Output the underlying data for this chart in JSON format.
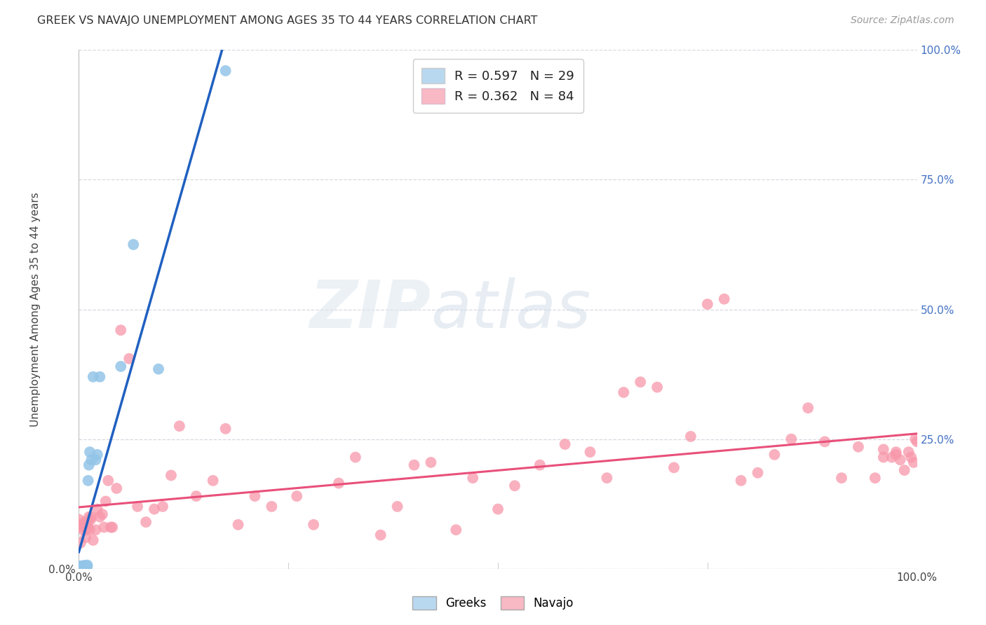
{
  "title": "GREEK VS NAVAJO UNEMPLOYMENT AMONG AGES 35 TO 44 YEARS CORRELATION CHART",
  "source": "Source: ZipAtlas.com",
  "ylabel": "Unemployment Among Ages 35 to 44 years",
  "xlim": [
    0,
    1.0
  ],
  "ylim": [
    0,
    1.0
  ],
  "greek_R": 0.597,
  "greek_N": 29,
  "navajo_R": 0.362,
  "navajo_N": 84,
  "greek_color": "#93c5e8",
  "navajo_color": "#f897aa",
  "greek_color_legend": "#b8d8f0",
  "navajo_color_legend": "#f8b8c4",
  "trend_line_color_greek": "#2060c0",
  "trend_line_color_navajo": "#e8507a",
  "trend_dashed_color": "#c0c8d8",
  "background_color": "#ffffff",
  "grid_color": "#d8d8e0",
  "right_tick_color": "#4472c4",
  "greek_x": [
    0.001,
    0.002,
    0.002,
    0.003,
    0.003,
    0.004,
    0.004,
    0.005,
    0.005,
    0.006,
    0.006,
    0.007,
    0.007,
    0.008,
    0.009,
    0.01,
    0.01,
    0.011,
    0.012,
    0.013,
    0.015,
    0.017,
    0.02,
    0.022,
    0.025,
    0.05,
    0.065,
    0.095,
    0.175
  ],
  "greek_y": [
    0.005,
    0.002,
    0.004,
    0.003,
    0.005,
    0.002,
    0.005,
    0.004,
    0.006,
    0.003,
    0.005,
    0.004,
    0.006,
    0.003,
    0.004,
    0.005,
    0.007,
    0.17,
    0.2,
    0.225,
    0.21,
    0.37,
    0.21,
    0.22,
    0.37,
    0.39,
    0.625,
    0.385,
    0.96
  ],
  "navajo_x": [
    0.0,
    0.001,
    0.002,
    0.003,
    0.005,
    0.006,
    0.007,
    0.008,
    0.009,
    0.01,
    0.011,
    0.012,
    0.013,
    0.014,
    0.015,
    0.017,
    0.02,
    0.022,
    0.025,
    0.028,
    0.03,
    0.032,
    0.035,
    0.038,
    0.04,
    0.045,
    0.05,
    0.06,
    0.07,
    0.08,
    0.09,
    0.1,
    0.11,
    0.12,
    0.14,
    0.16,
    0.175,
    0.19,
    0.21,
    0.23,
    0.26,
    0.28,
    0.31,
    0.33,
    0.36,
    0.38,
    0.4,
    0.42,
    0.45,
    0.47,
    0.5,
    0.52,
    0.55,
    0.58,
    0.61,
    0.63,
    0.65,
    0.67,
    0.69,
    0.71,
    0.73,
    0.75,
    0.77,
    0.79,
    0.81,
    0.83,
    0.85,
    0.87,
    0.89,
    0.91,
    0.93,
    0.95,
    0.96,
    0.97,
    0.975,
    0.98,
    0.985,
    0.99,
    0.993,
    0.996,
    0.998,
    1.0,
    0.975,
    0.96
  ],
  "navajo_y": [
    0.095,
    0.085,
    0.05,
    0.08,
    0.075,
    0.085,
    0.09,
    0.06,
    0.075,
    0.08,
    0.09,
    0.1,
    0.075,
    0.095,
    0.1,
    0.055,
    0.075,
    0.115,
    0.1,
    0.105,
    0.08,
    0.13,
    0.17,
    0.08,
    0.08,
    0.155,
    0.46,
    0.405,
    0.12,
    0.09,
    0.115,
    0.12,
    0.18,
    0.275,
    0.14,
    0.17,
    0.27,
    0.085,
    0.14,
    0.12,
    0.14,
    0.085,
    0.165,
    0.215,
    0.065,
    0.12,
    0.2,
    0.205,
    0.075,
    0.175,
    0.115,
    0.16,
    0.2,
    0.24,
    0.225,
    0.175,
    0.34,
    0.36,
    0.35,
    0.195,
    0.255,
    0.51,
    0.52,
    0.17,
    0.185,
    0.22,
    0.25,
    0.31,
    0.245,
    0.175,
    0.235,
    0.175,
    0.23,
    0.215,
    0.22,
    0.21,
    0.19,
    0.225,
    0.215,
    0.205,
    0.25,
    0.245,
    0.225,
    0.215
  ]
}
